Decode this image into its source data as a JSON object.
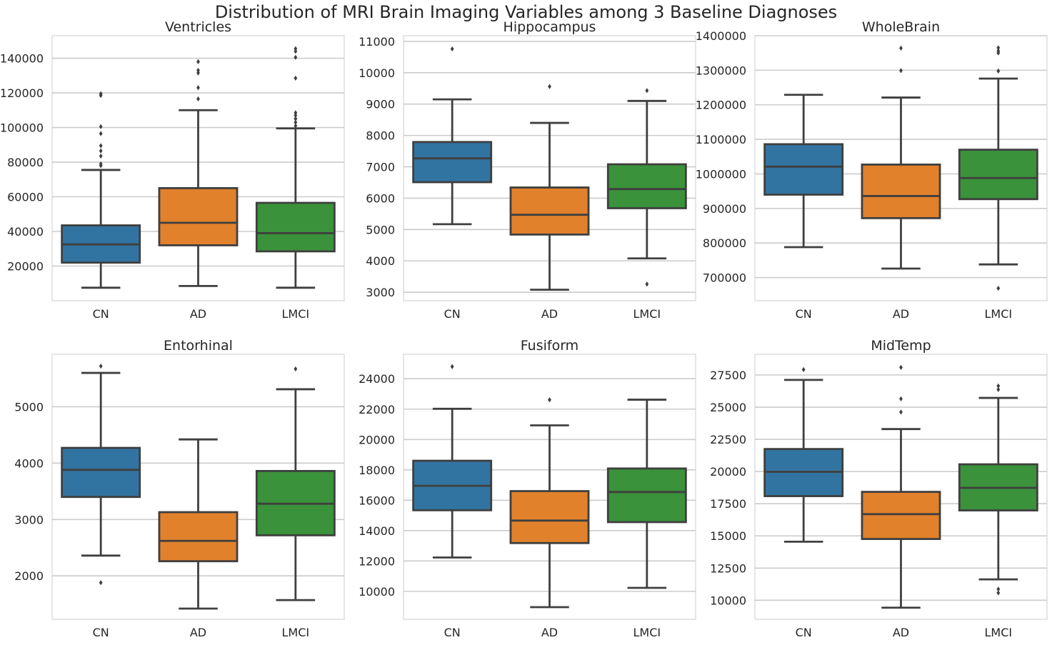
{
  "figure": {
    "title": "Distribution of MRI Brain Imaging Variables among 3 Baseline Diagnoses"
  },
  "colors": {
    "CN": "#3274a1",
    "AD": "#e1812c",
    "LMCI": "#3a923a",
    "box_edge": "#3f3f3f",
    "grid": "#cccccc",
    "frame": "#cccccc"
  },
  "chart_data": [
    {
      "type": "box",
      "title": "Ventricles",
      "categories": [
        "CN",
        "AD",
        "LMCI"
      ],
      "ylim": [
        0,
        153000
      ],
      "yticks": [
        20000,
        40000,
        60000,
        80000,
        100000,
        120000,
        140000
      ],
      "ytick_labels": [
        "20000",
        "40000",
        "60000",
        "80000",
        "100000",
        "120000",
        "140000"
      ],
      "boxes": [
        {
          "whislo": 7500,
          "q1": 22000,
          "med": 32500,
          "q3": 43500,
          "whishi": 75500,
          "fliers": [
            78000,
            79000,
            83500,
            86500,
            89500,
            96500,
            100500,
            118500,
            119500
          ]
        },
        {
          "whislo": 8500,
          "q1": 32000,
          "med": 45000,
          "q3": 65000,
          "whishi": 110000,
          "fliers": [
            116500,
            123000,
            131500,
            133000,
            138000
          ]
        },
        {
          "whislo": 7500,
          "q1": 28500,
          "med": 39000,
          "q3": 56500,
          "whishi": 99500,
          "fliers": [
            101000,
            103000,
            105000,
            107000,
            108500,
            128500,
            140500,
            144000,
            145500
          ]
        }
      ]
    },
    {
      "type": "box",
      "title": "Hippocampus",
      "categories": [
        "CN",
        "AD",
        "LMCI"
      ],
      "ylim": [
        2730,
        11180
      ],
      "yticks": [
        3000,
        4000,
        5000,
        6000,
        7000,
        8000,
        9000,
        10000,
        11000
      ],
      "ytick_labels": [
        "3000",
        "4000",
        "5000",
        "6000",
        "7000",
        "8000",
        "9000",
        "10000",
        "11000"
      ],
      "boxes": [
        {
          "whislo": 5170,
          "q1": 6510,
          "med": 7270,
          "q3": 7790,
          "whishi": 9150,
          "fliers": [
            10760
          ]
        },
        {
          "whislo": 3080,
          "q1": 4840,
          "med": 5470,
          "q3": 6340,
          "whishi": 8400,
          "fliers": [
            9560
          ]
        },
        {
          "whislo": 4080,
          "q1": 5680,
          "med": 6290,
          "q3": 7080,
          "whishi": 9100,
          "fliers": [
            3260,
            9430
          ]
        }
      ]
    },
    {
      "type": "box",
      "title": "WholeBrain",
      "categories": [
        "CN",
        "AD",
        "LMCI"
      ],
      "ylim": [
        633000,
        1400000
      ],
      "yticks": [
        700000,
        800000,
        900000,
        1000000,
        1100000,
        1200000,
        1300000,
        1400000
      ],
      "ytick_labels": [
        "700000",
        "800000",
        "900000",
        "1000000",
        "1100000",
        "1200000",
        "1300000",
        "1400000"
      ],
      "boxes": [
        {
          "whislo": 788000,
          "q1": 940000,
          "med": 1021000,
          "q3": 1086000,
          "whishi": 1229000,
          "fliers": []
        },
        {
          "whislo": 726000,
          "q1": 872000,
          "med": 936000,
          "q3": 1027000,
          "whishi": 1221000,
          "fliers": [
            1299000,
            1364000
          ]
        },
        {
          "whislo": 738000,
          "q1": 927000,
          "med": 988000,
          "q3": 1070000,
          "whishi": 1276000,
          "fliers": [
            669000,
            1298000,
            1350000,
            1356000,
            1365000
          ]
        }
      ]
    },
    {
      "type": "box",
      "title": "Entorhinal",
      "categories": [
        "CN",
        "AD",
        "LMCI"
      ],
      "ylim": [
        1230,
        5930
      ],
      "yticks": [
        2000,
        3000,
        4000,
        5000
      ],
      "ytick_labels": [
        "2000",
        "3000",
        "4000",
        "5000"
      ],
      "boxes": [
        {
          "whislo": 2360,
          "q1": 3400,
          "med": 3880,
          "q3": 4270,
          "whishi": 5600,
          "fliers": [
            1880,
            5720
          ]
        },
        {
          "whislo": 1420,
          "q1": 2260,
          "med": 2620,
          "q3": 3130,
          "whishi": 4420,
          "fliers": []
        },
        {
          "whislo": 1570,
          "q1": 2720,
          "med": 3280,
          "q3": 3860,
          "whishi": 5310,
          "fliers": [
            5670
          ]
        }
      ]
    },
    {
      "type": "box",
      "title": "Fusiform",
      "categories": [
        "CN",
        "AD",
        "LMCI"
      ],
      "ylim": [
        8160,
        25610
      ],
      "yticks": [
        10000,
        12000,
        14000,
        16000,
        18000,
        20000,
        22000,
        24000
      ],
      "ytick_labels": [
        "10000",
        "12000",
        "14000",
        "16000",
        "18000",
        "20000",
        "22000",
        "24000"
      ],
      "boxes": [
        {
          "whislo": 12230,
          "q1": 15340,
          "med": 16950,
          "q3": 18600,
          "whishi": 22020,
          "fliers": [
            24800
          ]
        },
        {
          "whislo": 8960,
          "q1": 13180,
          "med": 14660,
          "q3": 16600,
          "whishi": 20930,
          "fliers": [
            22610
          ]
        },
        {
          "whislo": 10230,
          "q1": 14560,
          "med": 16540,
          "q3": 18090,
          "whishi": 22620,
          "fliers": []
        }
      ]
    },
    {
      "type": "box",
      "title": "MidTemp",
      "categories": [
        "CN",
        "AD",
        "LMCI"
      ],
      "ylim": [
        8520,
        29110
      ],
      "yticks": [
        10000,
        12500,
        15000,
        17500,
        20000,
        22500,
        25000,
        27500
      ],
      "ytick_labels": [
        "10000",
        "12500",
        "15000",
        "17500",
        "20000",
        "22500",
        "25000",
        "27500"
      ],
      "boxes": [
        {
          "whislo": 14550,
          "q1": 18090,
          "med": 19980,
          "q3": 21750,
          "whishi": 27120,
          "fliers": [
            27920
          ]
        },
        {
          "whislo": 9420,
          "q1": 14760,
          "med": 16690,
          "q3": 18420,
          "whishi": 23300,
          "fliers": [
            24620,
            25650,
            28090
          ]
        },
        {
          "whislo": 11620,
          "q1": 16980,
          "med": 18730,
          "q3": 20560,
          "whishi": 25720,
          "fliers": [
            10570,
            10860,
            26370,
            26650
          ]
        }
      ]
    }
  ]
}
